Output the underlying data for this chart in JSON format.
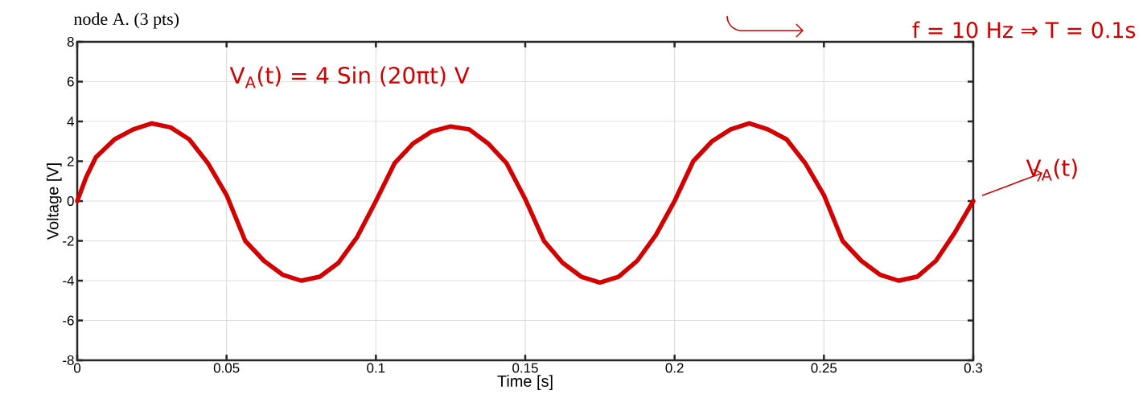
{
  "chart_data": {
    "type": "line",
    "xlabel": "Time [s]",
    "ylabel": "Voltage [V]",
    "annotations": [
      "node A. (3 pts)",
      "f = 10 Hz ⇒ T = 0.1s",
      "V$_{A}$(t) = 4 Sin (20πt) V",
      {
        "text": "V$_{A}$(t)",
        "x": 0.3,
        "y": 0
      }
    ],
    "x": [
      0,
      0.003,
      0.00625,
      0.0125,
      0.01875,
      0.025,
      0.03125,
      0.0375,
      0.04375,
      0.05,
      0.05625,
      0.0625,
      0.06875,
      0.075,
      0.08125,
      0.0875,
      0.09375,
      0.1,
      0.10625,
      0.1125,
      0.11875,
      0.125,
      0.13125,
      0.1375,
      0.14375,
      0.15,
      0.15625,
      0.1625,
      0.16875,
      0.175,
      0.18125,
      0.1875,
      0.19375,
      0.2,
      0.20625,
      0.2125,
      0.21875,
      0.225,
      0.23125,
      0.2375,
      0.24375,
      0.25,
      0.25625,
      0.2625,
      0.26875,
      0.275,
      0.28125,
      0.2875,
      0.29375,
      0.3
    ],
    "series": [
      {
        "color": "#d40000",
        "values": [
          0,
          1.2,
          2.2,
          3.1,
          3.6,
          3.9,
          3.7,
          3.1,
          1.9,
          0.3,
          -2.0,
          -3.0,
          -3.7,
          -4.0,
          -3.8,
          -3.1,
          -1.8,
          0,
          1.9,
          2.9,
          3.5,
          3.75,
          3.6,
          2.9,
          1.9,
          0.1,
          -2.0,
          -3.1,
          -3.8,
          -4.1,
          -3.8,
          -3.0,
          -1.7,
          0,
          2.0,
          3.0,
          3.6,
          3.9,
          3.6,
          3.1,
          1.9,
          0.3,
          -2.0,
          -3.0,
          -3.7,
          -4.0,
          -3.8,
          -3.0,
          -1.6,
          0
        ]
      }
    ],
    "xlim": [
      0,
      0.3
    ],
    "ylim": [
      -8,
      8
    ],
    "xticks": [
      0,
      0.05,
      0.1,
      0.15,
      0.2,
      0.25,
      0.3
    ],
    "yticks": [
      -8,
      -6,
      -4,
      -2,
      0,
      2,
      4,
      6,
      8
    ],
    "grid": true,
    "marker": "none",
    "line_style": "solid"
  }
}
